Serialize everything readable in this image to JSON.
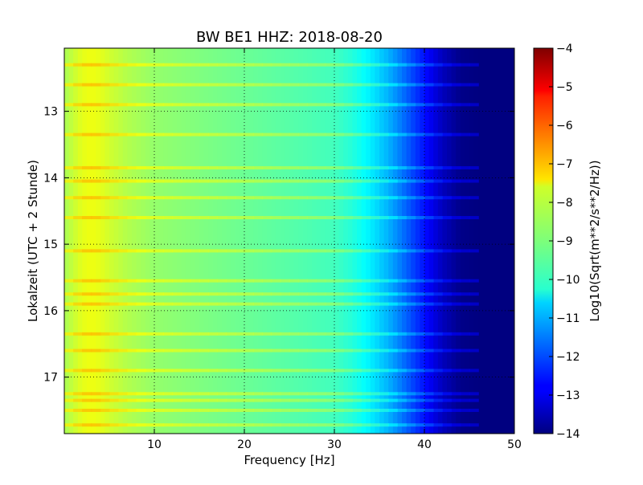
{
  "chart_data": {
    "type": "heatmap",
    "title": "BW BE1 HHZ: 2018-08-20",
    "xlabel": "Frequency [Hz]",
    "ylabel": "Lokalzeit (UTC + 2 Stunde)",
    "xlim": [
      0,
      50
    ],
    "ylim": [
      12.05,
      17.85
    ],
    "y_inverted": true,
    "x_ticks": [
      10,
      20,
      30,
      40,
      50
    ],
    "y_ticks": [
      13,
      14,
      15,
      16,
      17
    ],
    "grid": true,
    "colormap": "jet",
    "colorbar": {
      "label": "Log10(Sqrt(m**2/s**2/Hz))",
      "range": [
        -14,
        -4
      ],
      "ticks": [
        -4,
        -5,
        -6,
        -7,
        -8,
        -9,
        -10,
        -11,
        -12,
        -13,
        -14
      ]
    },
    "spectrum_profile": {
      "frequency_hz": [
        0,
        1,
        2,
        3,
        4,
        5,
        7,
        10,
        15,
        20,
        25,
        30,
        32,
        34,
        36,
        38,
        40,
        42,
        44,
        46,
        50
      ],
      "log10_amplitude": [
        -8.6,
        -8.3,
        -8.0,
        -7.9,
        -8.0,
        -8.2,
        -8.5,
        -8.8,
        -9.0,
        -9.2,
        -9.4,
        -9.6,
        -9.9,
        -10.4,
        -11.0,
        -11.8,
        -12.6,
        -13.4,
        -13.9,
        -14.0,
        -14.0
      ]
    },
    "bright_bands_local_time": [
      12.3,
      12.6,
      12.9,
      13.35,
      13.85,
      14.05,
      14.3,
      14.6,
      15.1,
      15.55,
      15.75,
      15.9,
      16.35,
      16.6,
      16.9,
      17.25,
      17.35,
      17.5,
      17.72
    ]
  }
}
